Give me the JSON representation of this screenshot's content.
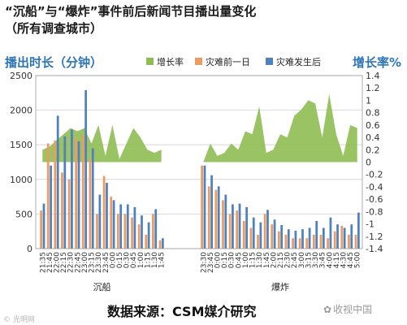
{
  "title_line1": "“沉船”与“爆炸”事件前后新闻节目播出量变化",
  "title_line2": "（所有调查城市）",
  "source": "数据来源：CSM媒介研究",
  "watermark_left": "© 光明网",
  "watermark_right": "收视中国",
  "watermark_right_icon": "wechat-icon",
  "chart_data": {
    "type": "bar",
    "left_axis_title": "播出时长（分钟）",
    "right_axis_title": "增长率%",
    "ylim": [
      0,
      2500
    ],
    "yticks": [
      0,
      500,
      1000,
      1500,
      2000,
      2500
    ],
    "y2lim": [
      -1.4,
      1.4
    ],
    "y2ticks": [
      "1.4",
      "1.2",
      "1",
      "0.8",
      "0.6",
      "0.4",
      "0.2",
      "0",
      "-0.2",
      "-0.4",
      "-0.6",
      "-0.8",
      "-1",
      "-1.2",
      "-1.4"
    ],
    "grid": true,
    "legend_position": "top",
    "colors": {
      "growth": "#8fbd52",
      "before": "#ed9a63",
      "after": "#4f81bd"
    },
    "series_names": {
      "growth": "增长率",
      "before": "灾难前一日",
      "after": "灾难发生后"
    },
    "groups": [
      {
        "label": "沉船",
        "x": [
          "21:35",
          "21:45",
          "22:00",
          "22:15",
          "22:30",
          "22:45",
          "23:00",
          "23:15",
          "23:30",
          "23:45",
          "0:00",
          "0:15",
          "0:30",
          "0:45",
          "1:00",
          "1:15",
          "1:30",
          "1:45"
        ],
        "before": [
          550,
          1520,
          1560,
          1100,
          1000,
          1600,
          1650,
          1300,
          500,
          1050,
          750,
          500,
          500,
          450,
          350,
          200,
          500,
          120
        ],
        "after": [
          650,
          1200,
          1920,
          1620,
          1720,
          1550,
          2290,
          1450,
          780,
          950,
          700,
          640,
          640,
          600,
          480,
          380,
          570,
          150
        ],
        "growth": [
          0.2,
          0.25,
          0.35,
          0.45,
          0.55,
          0.5,
          0.55,
          0.3,
          0.6,
          0.1,
          0.6,
          0.05,
          0.3,
          0.55,
          0.4,
          0.2,
          0.15,
          0.2
        ]
      },
      {
        "label": "爆炸",
        "x": [
          "23:30",
          "23:45",
          "0:00",
          "0:15",
          "0:30",
          "0:45",
          "1:00",
          "1:15",
          "1:30",
          "1:45",
          "2:00",
          "2:15",
          "2:30",
          "2:45",
          "3:00",
          "3:15",
          "3:30",
          "3:45",
          "4:00",
          "4:15",
          "4:30",
          "4:45",
          "5:00"
        ],
        "before": [
          1200,
          900,
          850,
          700,
          500,
          550,
          400,
          300,
          200,
          500,
          350,
          250,
          200,
          150,
          150,
          150,
          200,
          200,
          150,
          250,
          330,
          200,
          200
        ],
        "after": [
          1200,
          1060,
          900,
          780,
          640,
          650,
          600,
          450,
          380,
          560,
          420,
          340,
          280,
          260,
          280,
          300,
          400,
          300,
          450,
          350,
          300,
          350,
          520
        ],
        "growth": [
          0.0,
          0.3,
          0.1,
          0.15,
          0.3,
          0.2,
          0.5,
          0.45,
          0.9,
          0.15,
          0.2,
          0.45,
          0.4,
          0.75,
          0.85,
          1.0,
          0.95,
          0.4,
          1.1,
          0.45,
          0.1,
          0.6,
          0.55
        ]
      }
    ]
  }
}
